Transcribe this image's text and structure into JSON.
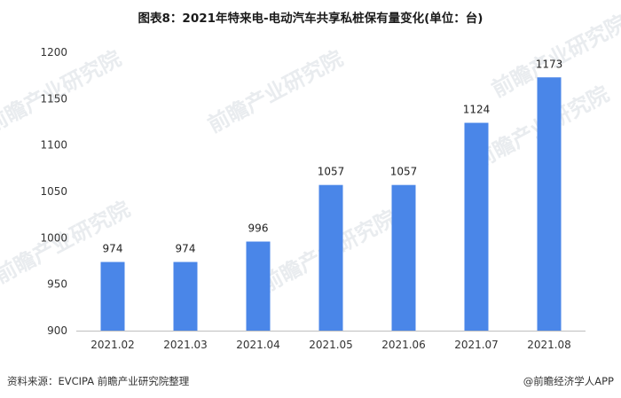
{
  "chart_data": {
    "type": "bar",
    "title": "图表8：2021年特来电-电动汽车共享私桩保有量变化(单位：台)",
    "categories": [
      "2021.02",
      "2021.03",
      "2021.04",
      "2021.05",
      "2021.06",
      "2021.07",
      "2021.08"
    ],
    "values": [
      974,
      974,
      996,
      1057,
      1057,
      1124,
      1173
    ],
    "ylim": [
      900,
      1200
    ],
    "yticks": [
      900,
      950,
      1000,
      1050,
      1100,
      1150,
      1200
    ],
    "xlabel": "",
    "ylabel": "",
    "grid": false,
    "bar_color": "#4A86E8"
  },
  "footer": {
    "source": "资料来源：EVCIPA 前瞻产业研究院整理",
    "brand": "@前瞻经济学人APP"
  },
  "watermark_text": "前瞻产业研究院"
}
